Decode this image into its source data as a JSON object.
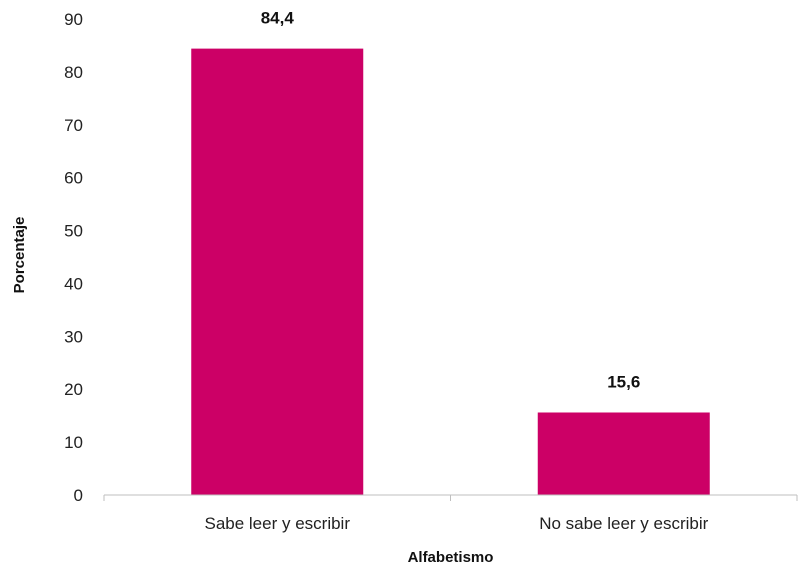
{
  "chart_data": {
    "type": "bar",
    "categories": [
      "Sabe leer y escribir",
      "No sabe leer y escribir"
    ],
    "values": [
      84.4,
      15.6
    ],
    "value_labels": [
      "84,4",
      "15,6"
    ],
    "xlabel": "Alfabetismo",
    "ylabel": "Porcentaje",
    "ylim": [
      0,
      90
    ],
    "yticks": [
      0,
      10,
      20,
      30,
      40,
      50,
      60,
      70,
      80,
      90
    ],
    "grid": false,
    "legend": "none",
    "bar_color": "#CC0066",
    "axis_color": "#BFBFBF"
  }
}
